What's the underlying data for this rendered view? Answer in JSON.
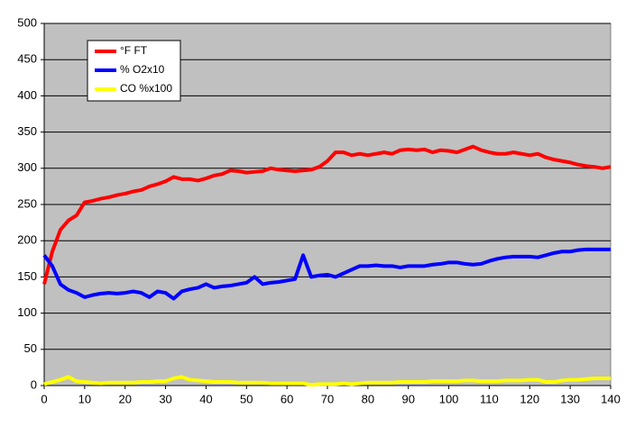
{
  "chart_data": {
    "type": "line",
    "x": [
      0,
      2,
      4,
      6,
      8,
      10,
      12,
      14,
      16,
      18,
      20,
      22,
      24,
      26,
      28,
      30,
      32,
      34,
      36,
      38,
      40,
      42,
      44,
      46,
      48,
      50,
      52,
      54,
      56,
      58,
      60,
      62,
      64,
      66,
      68,
      70,
      72,
      74,
      76,
      78,
      80,
      82,
      84,
      86,
      88,
      90,
      92,
      94,
      96,
      98,
      100,
      102,
      104,
      106,
      108,
      110,
      112,
      114,
      116,
      118,
      120,
      122,
      124,
      126,
      128,
      130,
      132,
      134,
      136,
      138,
      140
    ],
    "series": [
      {
        "name": "°F FT",
        "color": "#ff0000",
        "values": [
          140,
          185,
          215,
          228,
          235,
          253,
          255,
          258,
          260,
          263,
          265,
          268,
          270,
          275,
          278,
          282,
          288,
          285,
          285,
          283,
          286,
          290,
          292,
          297,
          296,
          294,
          295,
          296,
          300,
          298,
          297,
          296,
          297,
          298,
          302,
          310,
          322,
          322,
          318,
          320,
          318,
          320,
          322,
          320,
          325,
          326,
          325,
          326,
          322,
          325,
          324,
          322,
          326,
          330,
          325,
          322,
          320,
          320,
          322,
          320,
          318,
          320,
          315,
          312,
          310,
          308,
          305,
          303,
          302,
          300,
          302
        ]
      },
      {
        "name": "% O2x10",
        "color": "#0000ff",
        "values": [
          180,
          165,
          140,
          132,
          128,
          122,
          125,
          127,
          128,
          127,
          128,
          130,
          128,
          122,
          130,
          128,
          120,
          130,
          133,
          135,
          140,
          135,
          137,
          138,
          140,
          142,
          150,
          140,
          142,
          143,
          145,
          147,
          180,
          150,
          152,
          153,
          150,
          155,
          160,
          165,
          165,
          166,
          165,
          165,
          163,
          165,
          165,
          165,
          167,
          168,
          170,
          170,
          168,
          167,
          168,
          172,
          175,
          177,
          178,
          178,
          178,
          177,
          180,
          183,
          185,
          185,
          187,
          188,
          188,
          188,
          188
        ]
      },
      {
        "name": "CO %x100",
        "color": "#ffff00",
        "values": [
          2,
          5,
          8,
          12,
          6,
          5,
          4,
          3,
          4,
          4,
          4,
          4,
          5,
          5,
          6,
          6,
          10,
          12,
          8,
          7,
          6,
          5,
          5,
          5,
          4,
          4,
          4,
          4,
          3,
          3,
          3,
          3,
          3,
          1,
          2,
          2,
          2,
          3,
          2,
          3,
          4,
          4,
          4,
          4,
          5,
          5,
          5,
          5,
          6,
          6,
          6,
          6,
          7,
          7,
          6,
          6,
          6,
          7,
          7,
          7,
          8,
          8,
          5,
          5,
          7,
          8,
          8,
          9,
          10,
          10,
          10
        ]
      }
    ],
    "xlim": [
      0,
      140
    ],
    "xticks": [
      0,
      10,
      20,
      30,
      40,
      50,
      60,
      70,
      80,
      90,
      100,
      110,
      120,
      130,
      140
    ],
    "ylim": [
      0,
      500
    ],
    "yticks": [
      0,
      50,
      100,
      150,
      200,
      250,
      300,
      350,
      400,
      450,
      500
    ],
    "grid": true,
    "legend": "upper left"
  }
}
